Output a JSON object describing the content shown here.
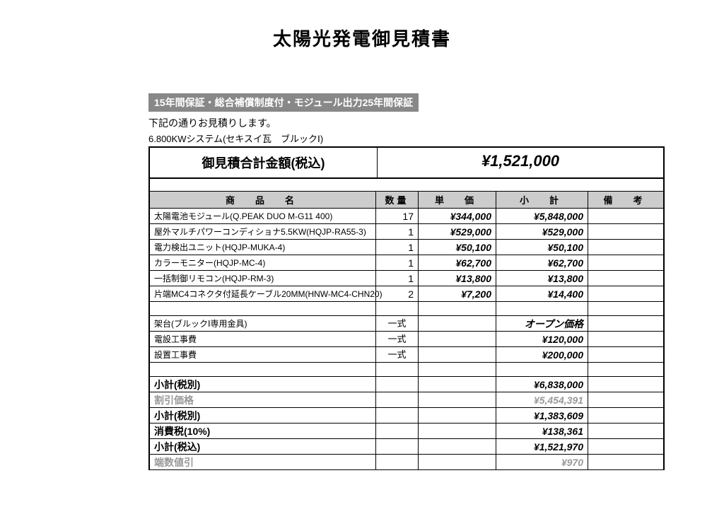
{
  "title": "太陽光発電御見積書",
  "warranty_banner": "15年間保証・総合補償制度付・モジュール出力25年間保証",
  "intro_line1": "下記の通りお見積りします。",
  "intro_line2": "6.800KWシステム(セキスイ瓦　ブルックⅠ)",
  "total_label": "御見積合計金額(税込)",
  "total_amount": "¥1,521,000",
  "headers": {
    "name": "商　品　名",
    "qty": "数量",
    "price": "単　価",
    "subtotal": "小　計",
    "note": "備　考"
  },
  "items": [
    {
      "name": "太陽電池モジュール(Q.PEAK DUO M-G11 400)",
      "qty": "17",
      "price": "¥344,000",
      "sub": "¥5,848,000"
    },
    {
      "name": "屋外マルチパワーコンディショナ5.5KW(HQJP-RA55-3)",
      "qty": "1",
      "price": "¥529,000",
      "sub": "¥529,000"
    },
    {
      "name": "電力検出ユニット(HQJP-MUKA-4)",
      "qty": "1",
      "price": "¥50,100",
      "sub": "¥50,100"
    },
    {
      "name": "カラーモニター(HQJP-MC-4)",
      "qty": "1",
      "price": "¥62,700",
      "sub": "¥62,700"
    },
    {
      "name": "一括制御リモコン(HQJP-RM-3)",
      "qty": "1",
      "price": "¥13,800",
      "sub": "¥13,800"
    },
    {
      "name": "片端MC4コネクタ付延長ケーブル20MM(HNW-MC4-CHN20)",
      "qty": "2",
      "price": "¥7,200",
      "sub": "¥14,400"
    }
  ],
  "set_items": [
    {
      "name": "架台(ブルックⅠ専用金具)",
      "qty": "一式",
      "price": "",
      "sub": "オープン価格"
    },
    {
      "name": "電設工事費",
      "qty": "一式",
      "price": "",
      "sub": "¥120,000"
    },
    {
      "name": "設置工事費",
      "qty": "一式",
      "price": "",
      "sub": "¥200,000"
    }
  ],
  "summary": [
    {
      "label": "小計(税別)",
      "value": "¥6,838,000",
      "gray": false
    },
    {
      "label": "割引価格",
      "value": "¥5,454,391",
      "gray": true
    },
    {
      "label": "小計(税別)",
      "value": "¥1,383,609",
      "gray": false
    },
    {
      "label": "消費税(10%)",
      "value": "¥138,361",
      "gray": false
    },
    {
      "label": "小計(税込)",
      "value": "¥1,521,970",
      "gray": false
    },
    {
      "label": "端数値引",
      "value": "¥970",
      "gray": true
    }
  ],
  "colors": {
    "banner_bg": "#888888",
    "banner_text": "#ffffff",
    "header_bg": "#cccccc",
    "border": "#000000",
    "gray_text": "#999999",
    "page_bg": "#ffffff"
  }
}
